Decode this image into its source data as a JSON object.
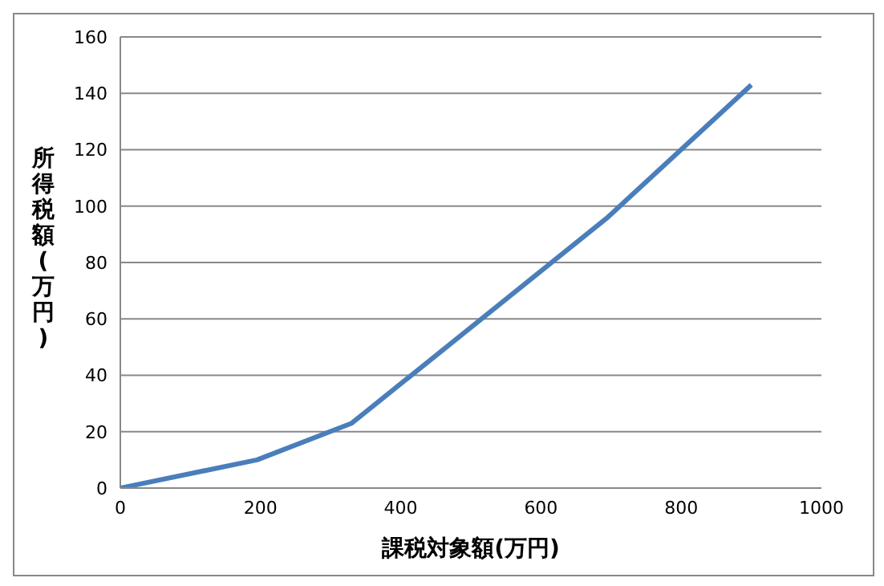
{
  "chart_data": {
    "type": "line",
    "xlabel": "課税対象額(万円)",
    "ylabel": "所得税額(万円)",
    "x": [
      0,
      195,
      330,
      695,
      900
    ],
    "series": [
      {
        "color": "#4a7ebb",
        "values": [
          0,
          10,
          23,
          96,
          143
        ]
      }
    ],
    "xlim": [
      0,
      1000
    ],
    "xticks": [
      0,
      200,
      400,
      600,
      800,
      1000
    ],
    "ylim": [
      0,
      160
    ],
    "yticks": [
      0,
      20,
      40,
      60,
      80,
      100,
      120,
      140,
      160
    ],
    "grid": "y",
    "legend": false,
    "marker": "none",
    "line_style": "solid"
  }
}
